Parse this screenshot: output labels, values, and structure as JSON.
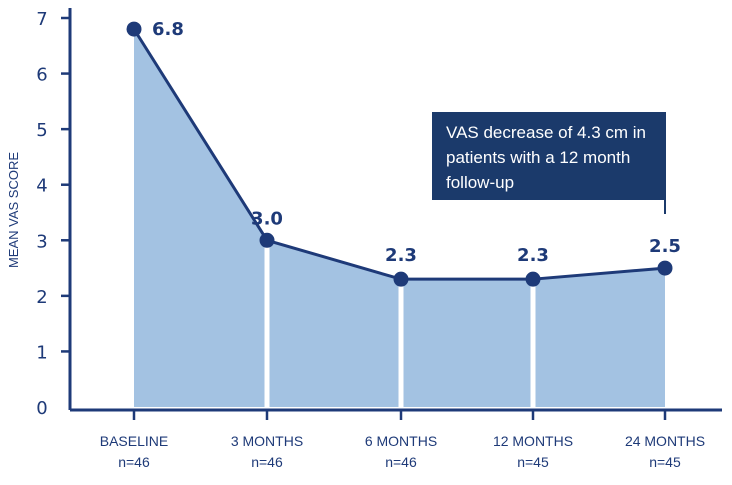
{
  "chart_data": {
    "type": "area",
    "categories": [
      "BASELINE",
      "3 MONTHS",
      "6 MONTHS",
      "12 MONTHS",
      "24 MONTHS"
    ],
    "sample_sizes": [
      "n=46",
      "n=46",
      "n=46",
      "n=45",
      "n=45"
    ],
    "values": [
      6.8,
      3.0,
      2.3,
      2.3,
      2.5
    ],
    "value_labels": [
      "6.8",
      "3.0",
      "2.3",
      "2.3",
      "2.5"
    ],
    "ylabel": "MEAN VAS SCORE",
    "xlabel": "",
    "ylim": [
      0,
      7
    ],
    "yticks": [
      "0",
      "1",
      "2",
      "3",
      "4",
      "5",
      "6",
      "7"
    ],
    "annotation": "VAS decrease of 4.3 cm in patients with a 12 month follow-up",
    "grid": false,
    "colors": {
      "line": "#1e3a78",
      "fill": "#a3c2e2",
      "annotation_bg": "#1b3a6b"
    }
  }
}
